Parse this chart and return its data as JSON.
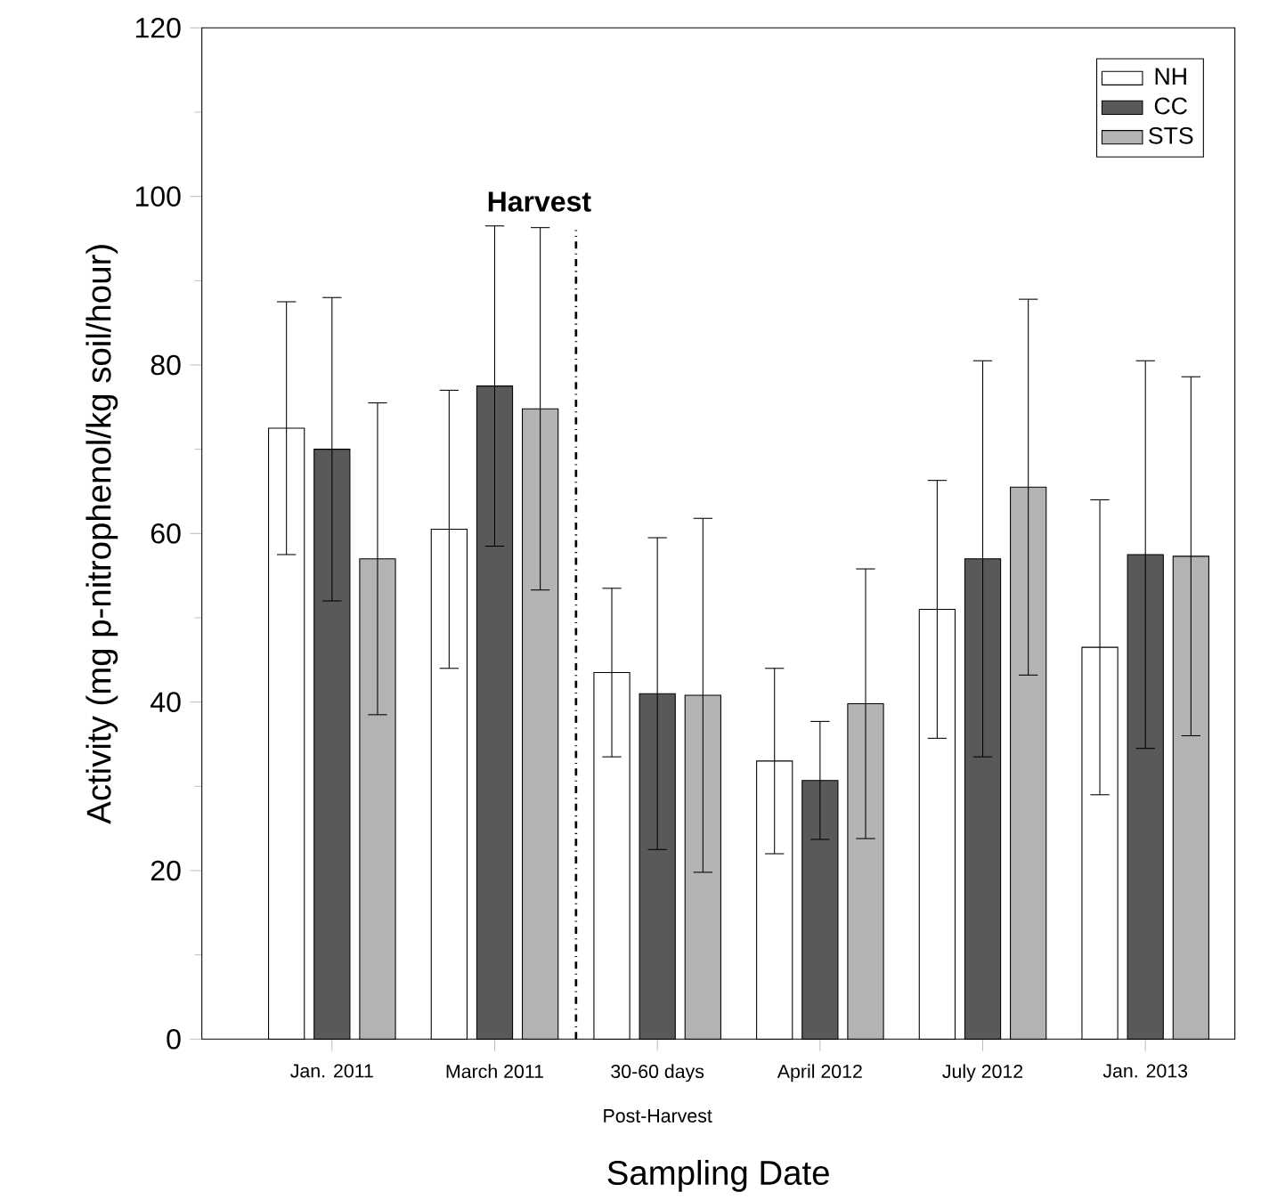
{
  "chart_data": {
    "type": "bar",
    "xlabel": "Sampling Date",
    "ylabel": "Activity (mg p-nitrophenol/kg soil/hour)",
    "categories": [
      "Jan. 2011",
      "March 2011",
      "30-60 days",
      "April 2012",
      "July 2012",
      "Jan. 2013"
    ],
    "series": [
      {
        "name": "NH",
        "color": "#ffffff",
        "values": [
          72.5,
          60.5,
          43.5,
          33,
          51,
          46.5
        ],
        "errors": [
          15,
          16.5,
          10,
          11,
          15.3,
          17.5
        ]
      },
      {
        "name": "CC",
        "color": "#595959",
        "values": [
          70,
          77.5,
          41,
          30.7,
          57,
          57.5
        ],
        "errors": [
          18,
          19,
          18.5,
          7,
          23.5,
          23
        ]
      },
      {
        "name": "STS",
        "color": "#b3b3b3",
        "values": [
          57,
          74.8,
          40.8,
          39.8,
          65.5,
          57.3
        ],
        "errors": [
          18.5,
          21.5,
          21,
          16,
          22.3,
          21.3
        ]
      }
    ],
    "ylim": [
      0,
      120
    ],
    "yticks": [
      0,
      20,
      40,
      60,
      80,
      100,
      120
    ],
    "annotations": [
      "Harvest",
      "Post-Harvest"
    ],
    "legend": "top right",
    "grid": false
  }
}
